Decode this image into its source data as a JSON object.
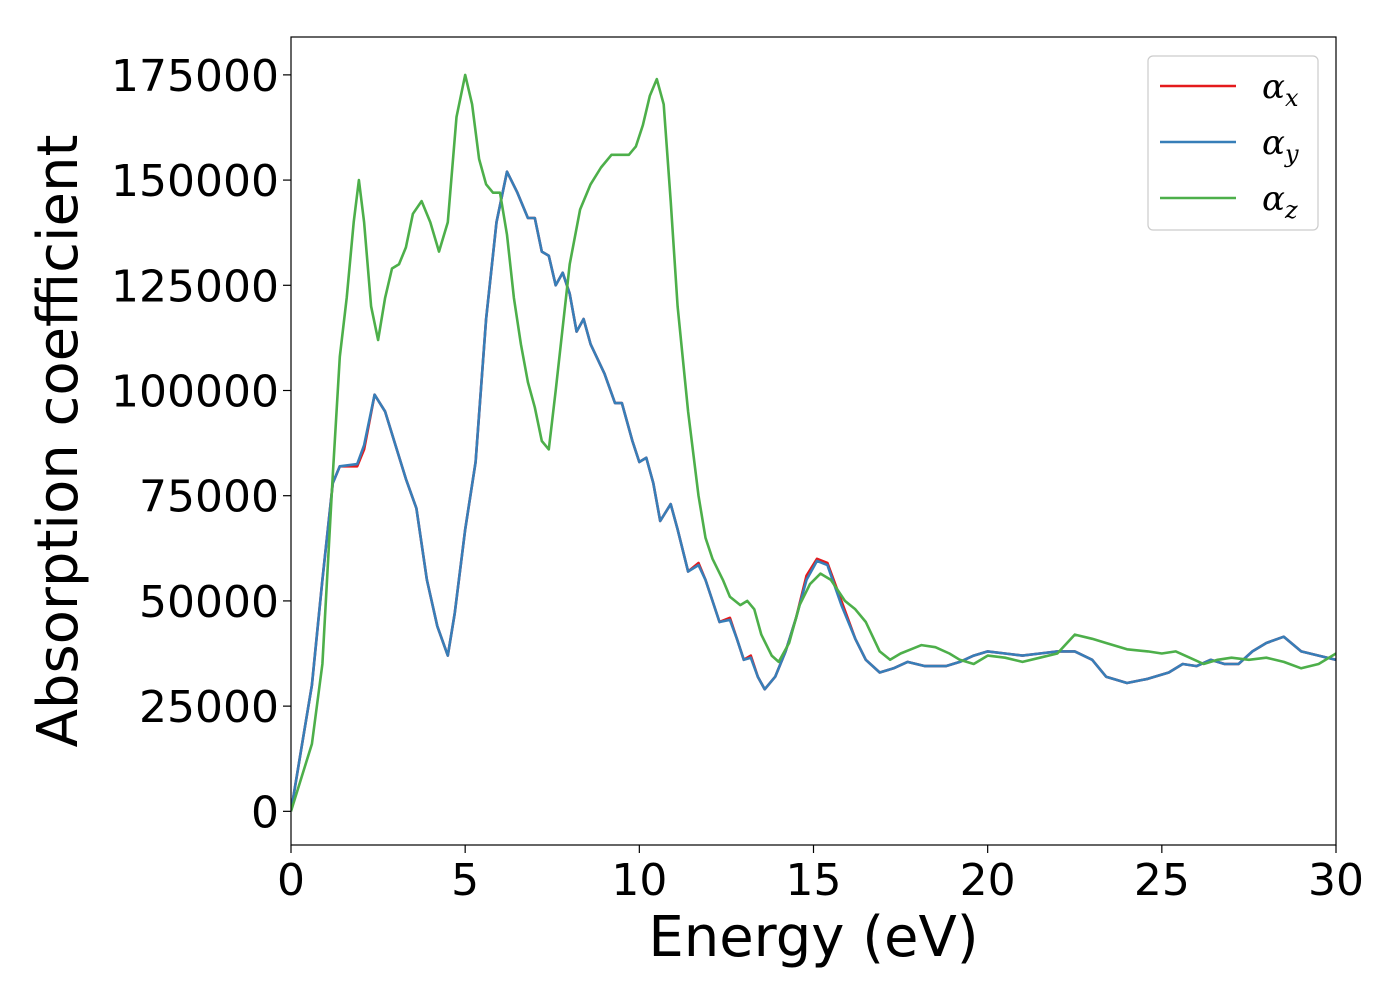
{
  "chart_data": {
    "type": "line",
    "xlabel": "Energy (eV)",
    "ylabel": "Absorption coefficient",
    "xlim": [
      0,
      30
    ],
    "ylim": [
      -8000,
      184000
    ],
    "xticks": [
      0,
      5,
      10,
      15,
      20,
      25,
      30
    ],
    "xtick_labels": [
      "0",
      "5",
      "10",
      "15",
      "20",
      "25",
      "30"
    ],
    "yticks": [
      0,
      25000,
      50000,
      75000,
      100000,
      125000,
      150000,
      175000
    ],
    "ytick_labels": [
      "0",
      "25000",
      "50000",
      "75000",
      "100000",
      "125000",
      "150000",
      "175000"
    ],
    "grid": false,
    "legend_position": "top-right",
    "series": [
      {
        "name": "α",
        "subscript": "x",
        "color": "#e41a1c",
        "points": [
          [
            0,
            0
          ],
          [
            0.3,
            15000
          ],
          [
            0.6,
            30000
          ],
          [
            0.9,
            55000
          ],
          [
            1.2,
            78000
          ],
          [
            1.4,
            82000
          ],
          [
            1.9,
            82000
          ],
          [
            2.1,
            86000
          ],
          [
            2.4,
            99000
          ],
          [
            2.7,
            95000
          ],
          [
            3.0,
            87000
          ],
          [
            3.3,
            79000
          ],
          [
            3.6,
            72000
          ],
          [
            3.9,
            55000
          ],
          [
            4.2,
            44000
          ],
          [
            4.5,
            37000
          ],
          [
            4.7,
            47000
          ],
          [
            5.0,
            67000
          ],
          [
            5.3,
            83000
          ],
          [
            5.6,
            117000
          ],
          [
            5.9,
            140000
          ],
          [
            6.2,
            152000
          ],
          [
            6.5,
            147000
          ],
          [
            6.8,
            141000
          ],
          [
            7.0,
            141000
          ],
          [
            7.2,
            133000
          ],
          [
            7.4,
            132000
          ],
          [
            7.6,
            125000
          ],
          [
            7.8,
            128000
          ],
          [
            8.0,
            123000
          ],
          [
            8.2,
            114000
          ],
          [
            8.4,
            117000
          ],
          [
            8.6,
            111000
          ],
          [
            9.0,
            104000
          ],
          [
            9.3,
            97000
          ],
          [
            9.5,
            97000
          ],
          [
            9.8,
            88000
          ],
          [
            10.0,
            83000
          ],
          [
            10.2,
            84000
          ],
          [
            10.4,
            78000
          ],
          [
            10.6,
            69000
          ],
          [
            10.9,
            73000
          ],
          [
            11.1,
            67000
          ],
          [
            11.4,
            57000
          ],
          [
            11.7,
            59000
          ],
          [
            11.9,
            55000
          ],
          [
            12.1,
            50000
          ],
          [
            12.3,
            45000
          ],
          [
            12.6,
            46000
          ],
          [
            12.8,
            41000
          ],
          [
            13.0,
            36000
          ],
          [
            13.2,
            37000
          ],
          [
            13.4,
            32000
          ],
          [
            13.6,
            29000
          ],
          [
            13.9,
            32000
          ],
          [
            14.2,
            38000
          ],
          [
            14.5,
            46000
          ],
          [
            14.8,
            56000
          ],
          [
            15.1,
            60000
          ],
          [
            15.4,
            59000
          ],
          [
            15.8,
            50000
          ],
          [
            16.2,
            41000
          ],
          [
            16.5,
            36000
          ],
          [
            16.9,
            33000
          ],
          [
            17.3,
            34000
          ],
          [
            17.7,
            35500
          ],
          [
            18.2,
            34500
          ],
          [
            18.8,
            34500
          ],
          [
            19.2,
            35500
          ],
          [
            19.6,
            37000
          ],
          [
            20.0,
            38000
          ],
          [
            20.5,
            37500
          ],
          [
            21.0,
            37000
          ],
          [
            21.5,
            37500
          ],
          [
            22.0,
            38000
          ],
          [
            22.5,
            38000
          ],
          [
            23.0,
            36000
          ],
          [
            23.4,
            32000
          ],
          [
            24.0,
            30500
          ],
          [
            24.6,
            31500
          ],
          [
            25.2,
            33000
          ],
          [
            25.6,
            35000
          ],
          [
            26.0,
            34500
          ],
          [
            26.4,
            36000
          ],
          [
            26.8,
            35000
          ],
          [
            27.2,
            35000
          ],
          [
            27.6,
            38000
          ],
          [
            28.0,
            40000
          ],
          [
            28.5,
            41500
          ],
          [
            29.0,
            38000
          ],
          [
            29.5,
            37000
          ],
          [
            30.0,
            36000
          ]
        ]
      },
      {
        "name": "α",
        "subscript": "y",
        "color": "#377eb8",
        "points": [
          [
            0,
            0
          ],
          [
            0.3,
            15000
          ],
          [
            0.6,
            30000
          ],
          [
            0.9,
            55000
          ],
          [
            1.2,
            78000
          ],
          [
            1.4,
            82000
          ],
          [
            1.9,
            82500
          ],
          [
            2.1,
            87000
          ],
          [
            2.4,
            99000
          ],
          [
            2.7,
            95000
          ],
          [
            3.0,
            87000
          ],
          [
            3.3,
            79000
          ],
          [
            3.6,
            72000
          ],
          [
            3.9,
            55000
          ],
          [
            4.2,
            44000
          ],
          [
            4.5,
            37000
          ],
          [
            4.7,
            47000
          ],
          [
            5.0,
            67000
          ],
          [
            5.3,
            83000
          ],
          [
            5.6,
            117000
          ],
          [
            5.9,
            140000
          ],
          [
            6.2,
            152000
          ],
          [
            6.5,
            147000
          ],
          [
            6.8,
            141000
          ],
          [
            7.0,
            141000
          ],
          [
            7.2,
            133000
          ],
          [
            7.4,
            132000
          ],
          [
            7.6,
            125000
          ],
          [
            7.8,
            128000
          ],
          [
            8.0,
            123000
          ],
          [
            8.2,
            114000
          ],
          [
            8.4,
            117000
          ],
          [
            8.6,
            111000
          ],
          [
            9.0,
            104000
          ],
          [
            9.3,
            97000
          ],
          [
            9.5,
            97000
          ],
          [
            9.8,
            88000
          ],
          [
            10.0,
            83000
          ],
          [
            10.2,
            84000
          ],
          [
            10.4,
            78000
          ],
          [
            10.6,
            69000
          ],
          [
            10.9,
            73000
          ],
          [
            11.1,
            67000
          ],
          [
            11.4,
            57000
          ],
          [
            11.7,
            58500
          ],
          [
            11.9,
            55000
          ],
          [
            12.1,
            50000
          ],
          [
            12.3,
            45000
          ],
          [
            12.6,
            45500
          ],
          [
            12.8,
            41000
          ],
          [
            13.0,
            36000
          ],
          [
            13.2,
            36500
          ],
          [
            13.4,
            32000
          ],
          [
            13.6,
            29000
          ],
          [
            13.9,
            32000
          ],
          [
            14.2,
            38000
          ],
          [
            14.5,
            46000
          ],
          [
            14.8,
            55000
          ],
          [
            15.1,
            59500
          ],
          [
            15.4,
            58500
          ],
          [
            15.8,
            49000
          ],
          [
            16.2,
            41000
          ],
          [
            16.5,
            36000
          ],
          [
            16.9,
            33000
          ],
          [
            17.3,
            34000
          ],
          [
            17.7,
            35500
          ],
          [
            18.2,
            34500
          ],
          [
            18.8,
            34500
          ],
          [
            19.2,
            35500
          ],
          [
            19.6,
            37000
          ],
          [
            20.0,
            38000
          ],
          [
            20.5,
            37500
          ],
          [
            21.0,
            37000
          ],
          [
            21.5,
            37500
          ],
          [
            22.0,
            38000
          ],
          [
            22.5,
            38000
          ],
          [
            23.0,
            36000
          ],
          [
            23.4,
            32000
          ],
          [
            24.0,
            30500
          ],
          [
            24.6,
            31500
          ],
          [
            25.2,
            33000
          ],
          [
            25.6,
            35000
          ],
          [
            26.0,
            34500
          ],
          [
            26.4,
            36000
          ],
          [
            26.8,
            35000
          ],
          [
            27.2,
            35000
          ],
          [
            27.6,
            38000
          ],
          [
            28.0,
            40000
          ],
          [
            28.5,
            41500
          ],
          [
            29.0,
            38000
          ],
          [
            29.5,
            37000
          ],
          [
            30.0,
            36000
          ]
        ]
      },
      {
        "name": "α",
        "subscript": "z",
        "color": "#4daf4a",
        "points": [
          [
            0,
            0
          ],
          [
            0.3,
            8000
          ],
          [
            0.6,
            16000
          ],
          [
            0.9,
            35000
          ],
          [
            1.2,
            80000
          ],
          [
            1.4,
            108000
          ],
          [
            1.6,
            122000
          ],
          [
            1.8,
            140000
          ],
          [
            1.95,
            150000
          ],
          [
            2.1,
            140000
          ],
          [
            2.3,
            120000
          ],
          [
            2.5,
            112000
          ],
          [
            2.7,
            122000
          ],
          [
            2.9,
            129000
          ],
          [
            3.1,
            130000
          ],
          [
            3.3,
            134000
          ],
          [
            3.5,
            142000
          ],
          [
            3.75,
            145000
          ],
          [
            4.0,
            140000
          ],
          [
            4.25,
            133000
          ],
          [
            4.5,
            140000
          ],
          [
            4.75,
            165000
          ],
          [
            5.0,
            175000
          ],
          [
            5.2,
            168000
          ],
          [
            5.4,
            155000
          ],
          [
            5.6,
            149000
          ],
          [
            5.8,
            147000
          ],
          [
            6.0,
            147000
          ],
          [
            6.2,
            137000
          ],
          [
            6.4,
            122000
          ],
          [
            6.6,
            111000
          ],
          [
            6.8,
            102000
          ],
          [
            7.0,
            96000
          ],
          [
            7.2,
            88000
          ],
          [
            7.4,
            86000
          ],
          [
            7.6,
            100000
          ],
          [
            7.8,
            115000
          ],
          [
            8.0,
            130000
          ],
          [
            8.3,
            143000
          ],
          [
            8.6,
            149000
          ],
          [
            8.9,
            153000
          ],
          [
            9.2,
            156000
          ],
          [
            9.5,
            156000
          ],
          [
            9.7,
            156000
          ],
          [
            9.9,
            158000
          ],
          [
            10.1,
            163000
          ],
          [
            10.3,
            170000
          ],
          [
            10.5,
            174000
          ],
          [
            10.7,
            168000
          ],
          [
            10.9,
            145000
          ],
          [
            11.1,
            120000
          ],
          [
            11.4,
            95000
          ],
          [
            11.7,
            75000
          ],
          [
            11.9,
            65000
          ],
          [
            12.1,
            60000
          ],
          [
            12.4,
            55000
          ],
          [
            12.6,
            51000
          ],
          [
            12.9,
            49000
          ],
          [
            13.1,
            50000
          ],
          [
            13.3,
            48000
          ],
          [
            13.5,
            42000
          ],
          [
            13.8,
            37000
          ],
          [
            14.0,
            35500
          ],
          [
            14.3,
            40000
          ],
          [
            14.6,
            49000
          ],
          [
            14.9,
            54000
          ],
          [
            15.2,
            56500
          ],
          [
            15.5,
            55000
          ],
          [
            15.9,
            50000
          ],
          [
            16.2,
            48000
          ],
          [
            16.5,
            45000
          ],
          [
            16.9,
            38000
          ],
          [
            17.2,
            36000
          ],
          [
            17.5,
            37500
          ],
          [
            17.8,
            38500
          ],
          [
            18.1,
            39500
          ],
          [
            18.5,
            39000
          ],
          [
            18.9,
            37500
          ],
          [
            19.2,
            36000
          ],
          [
            19.6,
            35000
          ],
          [
            20.0,
            37000
          ],
          [
            20.5,
            36500
          ],
          [
            21.0,
            35500
          ],
          [
            21.5,
            36500
          ],
          [
            22.0,
            37500
          ],
          [
            22.5,
            42000
          ],
          [
            23.0,
            41000
          ],
          [
            23.4,
            40000
          ],
          [
            24.0,
            38500
          ],
          [
            24.6,
            38000
          ],
          [
            25.0,
            37500
          ],
          [
            25.4,
            38000
          ],
          [
            25.8,
            36500
          ],
          [
            26.2,
            35000
          ],
          [
            26.6,
            36000
          ],
          [
            27.0,
            36500
          ],
          [
            27.5,
            36000
          ],
          [
            28.0,
            36500
          ],
          [
            28.5,
            35500
          ],
          [
            29.0,
            34000
          ],
          [
            29.5,
            35000
          ],
          [
            30.0,
            37500
          ]
        ]
      }
    ]
  }
}
